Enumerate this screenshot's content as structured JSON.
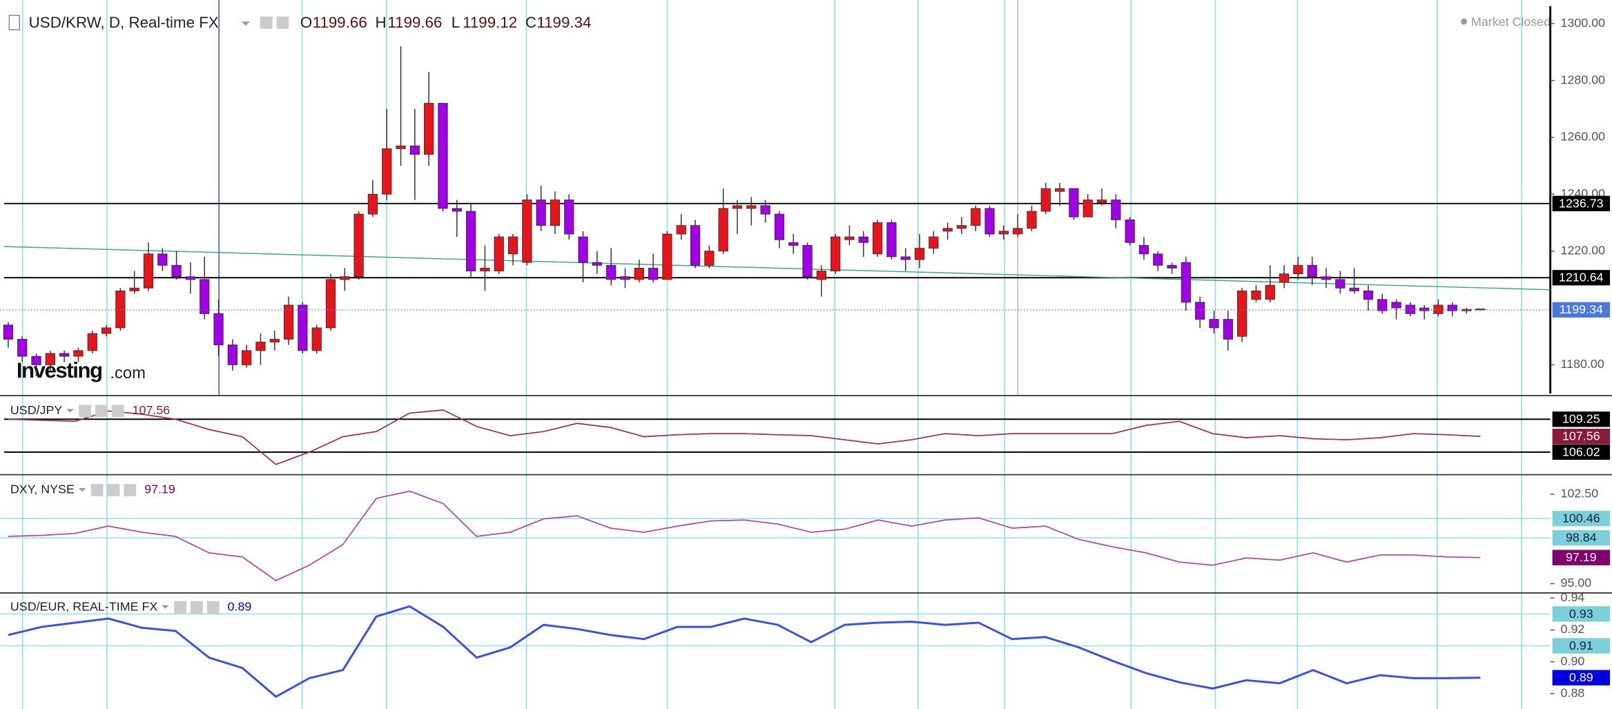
{
  "window": {
    "market_status": "Market Closed",
    "logo": [
      "Investing",
      ".com"
    ]
  },
  "chart_data": [
    {
      "type": "candlestick",
      "title": "USD/KRW, D, Real-time FX",
      "ohlc_labels": [
        "O",
        "H",
        "L",
        "C"
      ],
      "up_color": "#e8141c",
      "down_color": "#a100e6",
      "series": {
        "open": [
          1194,
          1189,
          1183,
          1180,
          1184,
          1183,
          1185,
          1191,
          1193,
          1206,
          1207,
          1219,
          1215,
          1211,
          1210,
          1198,
          1187,
          1180,
          1185,
          1188,
          1189,
          1201,
          1185,
          1193,
          1210,
          1211,
          1233,
          1240,
          1256,
          1257,
          1254,
          1272,
          1235,
          1234,
          1213,
          1213,
          1219,
          1216,
          1238,
          1229,
          1238,
          1225,
          1216,
          1215,
          1211,
          1210,
          1214,
          1210,
          1226,
          1229,
          1215,
          1220,
          1235,
          1235,
          1236,
          1233,
          1223,
          1222,
          1210,
          1213,
          1224,
          1225,
          1219,
          1230,
          1218,
          1217,
          1221,
          1227,
          1228,
          1229,
          1235,
          1226,
          1226,
          1228,
          1234,
          1241,
          1242,
          1232,
          1237,
          1238,
          1231,
          1222,
          1219,
          1215,
          1216,
          1202,
          1196,
          1196,
          1190,
          1203,
          1203,
          1209,
          1212,
          1215,
          1211,
          1210,
          1207,
          1206,
          1203,
          1202,
          1201,
          1200,
          1198,
          1201,
          1199,
          1199.66
        ],
        "high": [
          1195,
          1190,
          1184,
          1185,
          1185,
          1186,
          1192,
          1194,
          1207,
          1213,
          1223,
          1221,
          1220,
          1216,
          1218,
          1203,
          1189,
          1187,
          1191,
          1192,
          1204,
          1202,
          1194,
          1212,
          1214,
          1234,
          1245,
          1270,
          1292,
          1270,
          1283,
          1272,
          1238,
          1237,
          1222,
          1226,
          1226,
          1240,
          1243,
          1241,
          1240,
          1227,
          1220,
          1221,
          1214,
          1217,
          1219,
          1227,
          1233,
          1231,
          1222,
          1242,
          1238,
          1239,
          1238,
          1234,
          1226,
          1223,
          1215,
          1226,
          1229,
          1227,
          1231,
          1231,
          1221,
          1226,
          1227,
          1230,
          1232,
          1236,
          1236,
          1229,
          1233,
          1236,
          1244,
          1244,
          1242,
          1240,
          1242,
          1240,
          1232,
          1225,
          1220,
          1216,
          1218,
          1204,
          1199,
          1199,
          1207,
          1208,
          1215,
          1215,
          1218,
          1218,
          1214,
          1213,
          1214,
          1208,
          1205,
          1203,
          1202,
          1201,
          1203,
          1202,
          1200,
          1199.66
        ],
        "low": [
          1186,
          1181,
          1176,
          1178,
          1181,
          1181,
          1184,
          1190,
          1192,
          1205,
          1206,
          1213,
          1210,
          1205,
          1196,
          1183,
          1178,
          1179,
          1180,
          1185,
          1187,
          1184,
          1184,
          1192,
          1206,
          1210,
          1232,
          1238,
          1250,
          1238,
          1250,
          1234,
          1225,
          1211,
          1206,
          1212,
          1215,
          1215,
          1227,
          1226,
          1224,
          1209,
          1212,
          1208,
          1207,
          1209,
          1209,
          1210,
          1224,
          1214,
          1214,
          1219,
          1226,
          1229,
          1230,
          1221,
          1219,
          1210,
          1204,
          1212,
          1222,
          1218,
          1218,
          1217,
          1213,
          1214,
          1219,
          1224,
          1226,
          1227,
          1225,
          1224,
          1225,
          1227,
          1233,
          1236,
          1231,
          1232,
          1236,
          1228,
          1222,
          1217,
          1213,
          1212,
          1199,
          1193,
          1191,
          1185,
          1188,
          1202,
          1202,
          1207,
          1210,
          1208,
          1207,
          1205,
          1205,
          1199,
          1198,
          1196,
          1197,
          1196,
          1197,
          1197,
          1198,
          1199.12
        ],
        "close": [
          1189,
          1183,
          1180,
          1184,
          1183,
          1185,
          1191,
          1193,
          1206,
          1207,
          1219,
          1215,
          1211,
          1210,
          1198,
          1187,
          1180,
          1185,
          1188,
          1189,
          1201,
          1185,
          1193,
          1210,
          1211,
          1233,
          1240,
          1256,
          1257,
          1254,
          1272,
          1235,
          1234,
          1213,
          1214,
          1225,
          1225,
          1238,
          1229,
          1238,
          1226,
          1216,
          1215,
          1210,
          1210,
          1214,
          1210,
          1226,
          1229,
          1215,
          1220,
          1235,
          1236,
          1236,
          1233,
          1224,
          1222,
          1211,
          1213,
          1225,
          1225,
          1223,
          1230,
          1218,
          1217,
          1221,
          1225,
          1228,
          1229,
          1235,
          1226,
          1227,
          1228,
          1234,
          1242,
          1242,
          1232,
          1238,
          1238,
          1231,
          1223,
          1219,
          1215,
          1214,
          1202,
          1196,
          1193,
          1189,
          1206,
          1206,
          1208,
          1212,
          1215,
          1211,
          1210,
          1207,
          1206,
          1203,
          1199,
          1200,
          1198,
          1199,
          1201,
          1199,
          1199.5,
          1199.34
        ]
      },
      "ylim": [
        1170,
        1306
      ],
      "yticks": [
        {
          "value": 1180,
          "label": "1180.00"
        },
        {
          "value": 1220,
          "label": "1220.00"
        },
        {
          "value": 1240,
          "label": "1240.00"
        },
        {
          "value": 1260,
          "label": "1260.00"
        },
        {
          "value": 1280,
          "label": "1280.00"
        },
        {
          "value": 1300,
          "label": "1300.00"
        }
      ],
      "levels": [
        1236.73,
        1210.64
      ],
      "trendline": [
        1221.6,
        1206.4
      ],
      "trend_color": "#3aaa8a"
    },
    {
      "type": "line",
      "title": "USD/JPY",
      "color": "#a0306a",
      "last_color": "#8b1a3a",
      "values": [
        109.25,
        109.15,
        109.05,
        110.06,
        109.75,
        109.25,
        108.24,
        107.53,
        104.81,
        106.02,
        107.53,
        108.04,
        109.86,
        110.16,
        108.54,
        107.63,
        108.04,
        108.85,
        108.44,
        107.53,
        107.73,
        107.84,
        107.84,
        107.73,
        107.63,
        107.23,
        106.83,
        107.23,
        107.84,
        107.63,
        107.84,
        107.84,
        107.84,
        107.84,
        108.64,
        109.05,
        107.84,
        107.43,
        107.63,
        107.33,
        107.23,
        107.43,
        107.84,
        107.73,
        107.56
      ],
      "ylim": [
        104,
        111.27
      ],
      "levels": [
        109.25,
        106.02
      ]
    },
    {
      "type": "line",
      "title": "DXY, NYSE",
      "color": "#b04aa8",
      "last_color": "#800070",
      "values": [
        98.97,
        99.05,
        99.22,
        99.83,
        99.31,
        98.97,
        97.59,
        97.24,
        95.26,
        96.55,
        98.28,
        102.16,
        102.76,
        101.72,
        98.97,
        99.31,
        100.43,
        100.69,
        99.66,
        99.31,
        99.83,
        100.26,
        100.34,
        100.0,
        99.31,
        99.57,
        100.34,
        99.83,
        100.34,
        100.52,
        99.66,
        99.83,
        98.71,
        98.1,
        97.59,
        96.81,
        96.55,
        97.16,
        96.98,
        97.59,
        96.81,
        97.41,
        97.41,
        97.24,
        97.19
      ],
      "ylim": [
        94.4,
        103.88
      ],
      "yticks": [
        {
          "value": 95,
          "label": "95.00"
        },
        {
          "value": 102.5,
          "label": "102.50"
        }
      ],
      "price_labels": [
        100.46,
        98.84
      ]
    },
    {
      "type": "line",
      "title": "USD/EUR, REAL-TIME FX",
      "color": "#3a4df0",
      "last_color": "#0000e0",
      "values": [
        0.9168,
        0.9219,
        0.9245,
        0.9271,
        0.9213,
        0.9194,
        0.9026,
        0.8961,
        0.8781,
        0.8897,
        0.8948,
        0.9284,
        0.9348,
        0.9219,
        0.9026,
        0.909,
        0.9232,
        0.9206,
        0.9168,
        0.9142,
        0.9219,
        0.9219,
        0.9271,
        0.9232,
        0.9123,
        0.9232,
        0.9245,
        0.9252,
        0.9232,
        0.9245,
        0.9142,
        0.9155,
        0.909,
        0.9006,
        0.8929,
        0.8871,
        0.8832,
        0.8884,
        0.8865,
        0.8948,
        0.8865,
        0.8916,
        0.8897,
        0.8897,
        0.89
      ],
      "ylim": [
        0.871,
        0.9413
      ],
      "yticks": [
        0.88,
        {
          "value": 0.9,
          "label": "0.90"
        },
        0.92,
        0.94
      ],
      "price_labels": [
        0.93,
        0.91
      ]
    }
  ]
}
